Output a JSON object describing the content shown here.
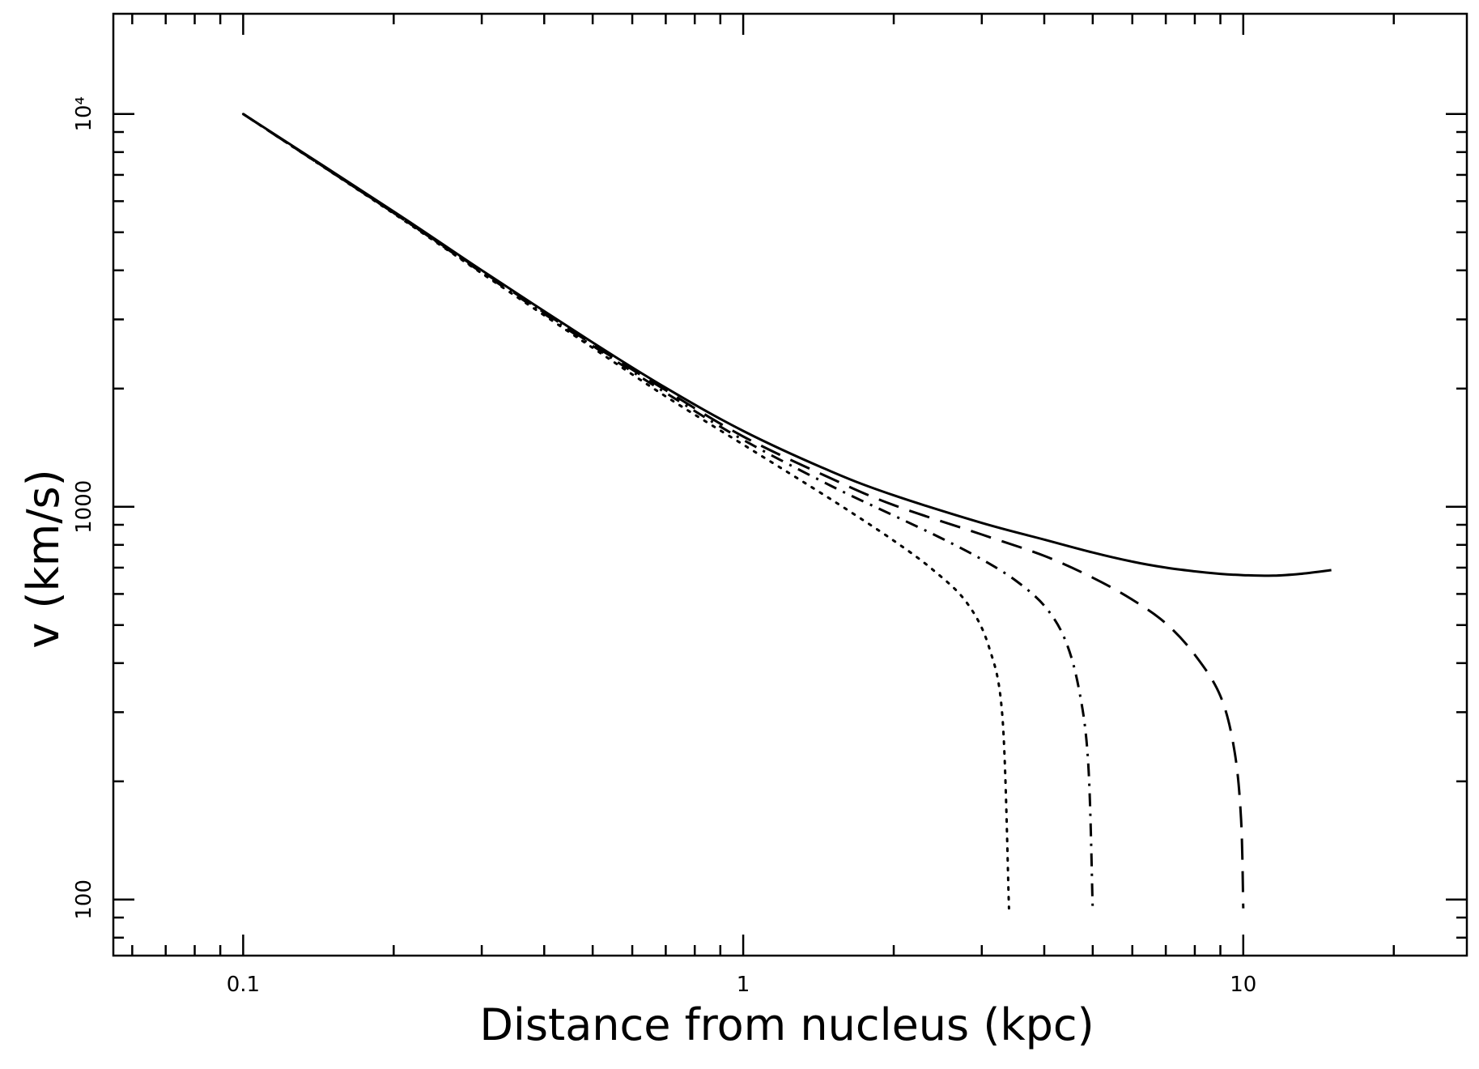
{
  "chart_data": {
    "type": "line",
    "title": "",
    "xlabel": "Distance from nucleus (kpc)",
    "ylabel": "v (km/s)",
    "xscale": "log",
    "yscale": "log",
    "xlim": [
      0.055,
      28
    ],
    "ylim": [
      72,
      18000
    ],
    "grid": false,
    "x_ticks": [
      {
        "value": 0.1,
        "label": "0.1"
      },
      {
        "value": 1,
        "label": "1"
      },
      {
        "value": 10,
        "label": "10"
      }
    ],
    "y_ticks": [
      {
        "value": 100,
        "label": "100"
      },
      {
        "value": 1000,
        "label": "1000"
      },
      {
        "value": 10000,
        "label": "10⁴"
      }
    ],
    "series": [
      {
        "style": "solid",
        "x": [
          0.1,
          0.2,
          0.3,
          0.5,
          0.7,
          1.0,
          1.5,
          2.0,
          3.0,
          4.0,
          5.0,
          6.0,
          7.0,
          8.0,
          9.0,
          10.0,
          11.5,
          13.0,
          15.0
        ],
        "y": [
          10000,
          5650,
          4000,
          2620,
          2010,
          1560,
          1230,
          1070,
          910,
          825,
          765,
          725,
          700,
          685,
          675,
          670,
          668,
          675,
          690
        ]
      },
      {
        "style": "dashed",
        "x": [
          0.1,
          0.2,
          0.3,
          0.5,
          0.7,
          1.0,
          1.5,
          2.0,
          3.0,
          4.0,
          5.0,
          6.0,
          7.0,
          8.0,
          9.0,
          9.6,
          9.9,
          10.0
        ],
        "y": [
          10000,
          5600,
          3980,
          2590,
          1980,
          1510,
          1180,
          1010,
          850,
          750,
          660,
          580,
          505,
          420,
          330,
          240,
          160,
          95
        ]
      },
      {
        "style": "dash-dot",
        "x": [
          0.1,
          0.2,
          0.3,
          0.5,
          0.7,
          1.0,
          1.5,
          2.0,
          2.5,
          3.0,
          3.5,
          4.0,
          4.4,
          4.7,
          4.9,
          5.0
        ],
        "y": [
          10000,
          5600,
          3950,
          2570,
          1950,
          1480,
          1130,
          950,
          830,
          735,
          650,
          560,
          460,
          340,
          220,
          95
        ]
      },
      {
        "style": "dotted",
        "x": [
          0.1,
          0.2,
          0.3,
          0.5,
          0.7,
          1.0,
          1.3,
          1.6,
          2.0,
          2.4,
          2.8,
          3.1,
          3.3,
          3.4
        ],
        "y": [
          10000,
          5580,
          3930,
          2540,
          1910,
          1440,
          1170,
          990,
          820,
          690,
          570,
          440,
          290,
          95
        ]
      }
    ]
  }
}
